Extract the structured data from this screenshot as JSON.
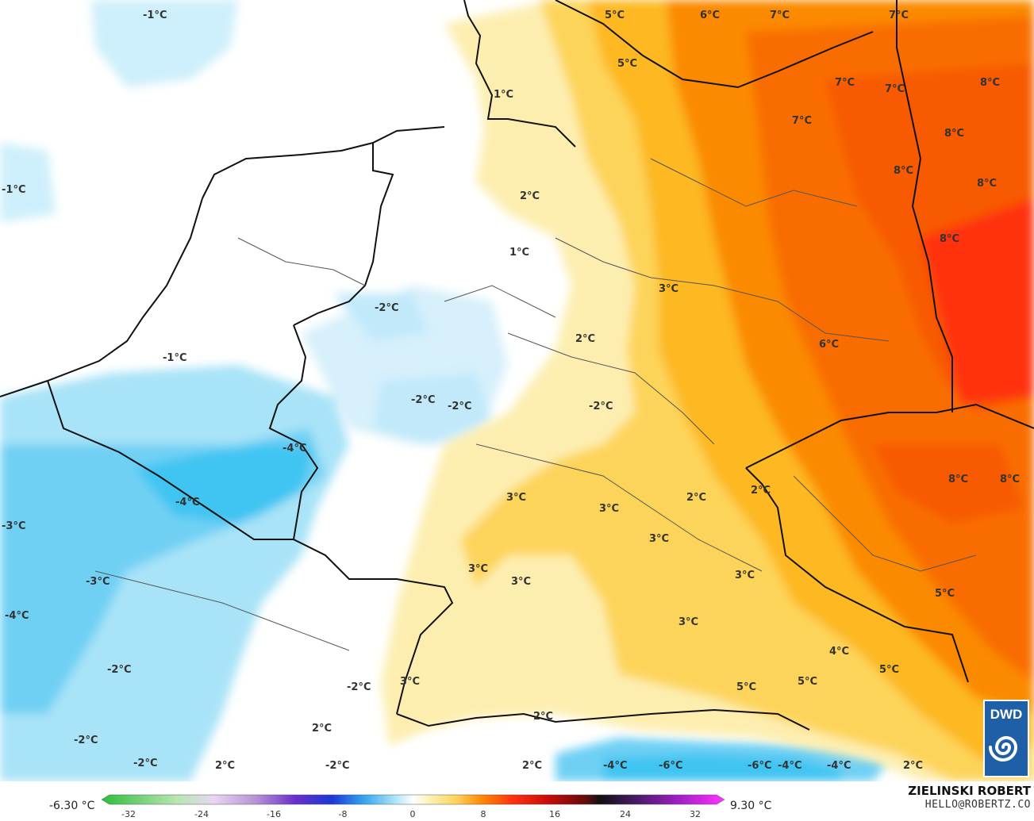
{
  "legend": {
    "min_label": "-6.30 °C",
    "max_label": "9.30 °C",
    "ticks": [
      "-32",
      "-24",
      "-16",
      "-8",
      "0",
      "8",
      "16",
      "24",
      "32"
    ]
  },
  "credits": {
    "author": "ZIELINSKI ROBERT",
    "email": "HELLO@ROBERTZ.CO"
  },
  "logo": {
    "text": "DWD"
  },
  "labels": [
    "-1°C",
    "-1°C",
    "-1°C",
    "5°C",
    "6°C",
    "7°C",
    "7°C",
    "5°C",
    "1°C",
    "7°C",
    "7°C",
    "8°C",
    "7°C",
    "8°C",
    "8°C",
    "8°C",
    "2°C",
    "1°C",
    "8°C",
    "-2°C",
    "3°C",
    "2°C",
    "6°C",
    "-2°C",
    "-2°C",
    "-2°C",
    "-4°C",
    "-4°C",
    "2°C",
    "3°C",
    "3°C",
    "8°C",
    "8°C",
    "2°C",
    "-3°C",
    "3°C",
    "3°C",
    "3°C",
    "3°C",
    "-3°C",
    "5°C",
    "-4°C",
    "3°C",
    "4°C",
    "-2°C",
    "3°C",
    "-2°C",
    "5°C",
    "5°C",
    "5°C",
    "2°C",
    "-2°C",
    "2°C",
    "-2°C",
    "2°C",
    "-2°C",
    "2°C",
    "-4°C",
    "-6°C",
    "-6°C",
    "-4°C",
    "-4°C",
    "2°C"
  ],
  "colors": {
    "cold_strong": "#3fc4f2",
    "cold_mid": "#8fd8f5",
    "cold_light": "#d7f0fb",
    "neutral": "#ffffff",
    "warm_light": "#fdeeb0",
    "warm_mid": "#fdd45a",
    "warm_orange": "#fca30f",
    "warm_deep": "#f75a00",
    "warm_red": "#ff3010"
  }
}
